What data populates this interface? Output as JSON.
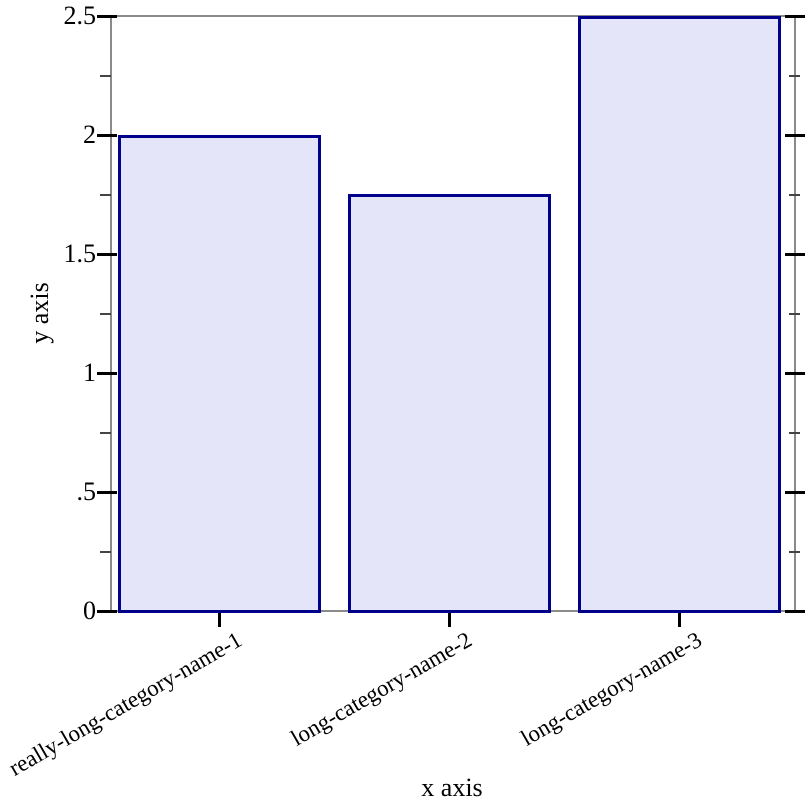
{
  "chart_data": {
    "type": "bar",
    "title": "",
    "xlabel": "x axis",
    "ylabel": "y axis",
    "categories": [
      "really-long-category-name-1",
      "long-category-name-2",
      "long-category-name-3"
    ],
    "values": [
      2,
      1.75,
      2.5
    ],
    "ylim": [
      0,
      2.5
    ],
    "yticks_major": [
      {
        "v": 0,
        "label": "0"
      },
      {
        "v": 0.5,
        "label": ".5"
      },
      {
        "v": 1,
        "label": "1"
      },
      {
        "v": 1.5,
        "label": "1.5"
      },
      {
        "v": 2,
        "label": "2"
      },
      {
        "v": 2.5,
        "label": "2.5"
      }
    ],
    "yticks_minor": [
      0.25,
      0.75,
      1.25,
      1.75,
      2.25
    ],
    "grid": false,
    "legend": "none",
    "label_rotation_deg": -30,
    "colors": {
      "bar_fill": "#e5e5f9",
      "bar_stroke": "#00008a",
      "frame": "#8a8a8a",
      "major_tick": "#000000",
      "minor_tick": "#444444",
      "text": "#000000",
      "background": "#ffffff"
    }
  }
}
